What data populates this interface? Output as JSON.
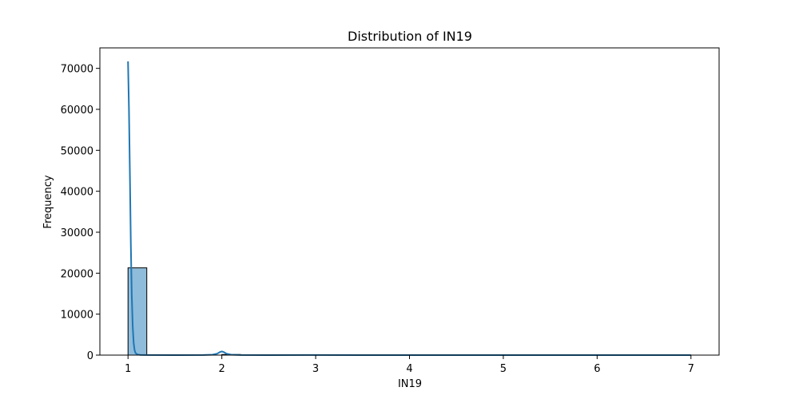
{
  "chart_data": {
    "type": "bar",
    "title": "Distribution of IN19",
    "xlabel": "IN19",
    "ylabel": "Frequency",
    "xlim": [
      0.7,
      7.3
    ],
    "ylim": [
      0,
      75000
    ],
    "xticks": [
      1,
      2,
      3,
      4,
      5,
      6,
      7
    ],
    "yticks": [
      0,
      10000,
      20000,
      30000,
      40000,
      50000,
      60000,
      70000
    ],
    "grid": false,
    "bins": [
      {
        "x0": 1.0,
        "x1": 1.2,
        "count": 21300
      },
      {
        "x0": 1.2,
        "x1": 1.4,
        "count": 0
      },
      {
        "x0": 1.4,
        "x1": 1.6,
        "count": 0
      },
      {
        "x0": 1.6,
        "x1": 1.8,
        "count": 0
      },
      {
        "x0": 1.8,
        "x1": 2.0,
        "count": 0
      },
      {
        "x0": 2.0,
        "x1": 2.2,
        "count": 150
      },
      {
        "x0": 2.2,
        "x1": 2.4,
        "count": 0
      },
      {
        "x0": 2.4,
        "x1": 2.6,
        "count": 0
      },
      {
        "x0": 2.6,
        "x1": 2.8,
        "count": 0
      },
      {
        "x0": 2.8,
        "x1": 3.0,
        "count": 0
      },
      {
        "x0": 3.0,
        "x1": 3.2,
        "count": 30
      },
      {
        "x0": 3.2,
        "x1": 3.4,
        "count": 0
      },
      {
        "x0": 3.4,
        "x1": 3.6,
        "count": 0
      },
      {
        "x0": 3.6,
        "x1": 3.8,
        "count": 0
      },
      {
        "x0": 3.8,
        "x1": 4.0,
        "count": 0
      },
      {
        "x0": 4.0,
        "x1": 4.2,
        "count": 10
      },
      {
        "x0": 4.2,
        "x1": 4.4,
        "count": 0
      },
      {
        "x0": 4.4,
        "x1": 4.6,
        "count": 0
      },
      {
        "x0": 4.6,
        "x1": 4.8,
        "count": 0
      },
      {
        "x0": 4.8,
        "x1": 5.0,
        "count": 0
      },
      {
        "x0": 5.0,
        "x1": 5.2,
        "count": 5
      },
      {
        "x0": 5.2,
        "x1": 5.4,
        "count": 0
      },
      {
        "x0": 5.4,
        "x1": 5.6,
        "count": 0
      },
      {
        "x0": 5.6,
        "x1": 5.8,
        "count": 0
      },
      {
        "x0": 5.8,
        "x1": 6.0,
        "count": 0
      },
      {
        "x0": 6.0,
        "x1": 6.2,
        "count": 3
      },
      {
        "x0": 6.2,
        "x1": 6.4,
        "count": 0
      },
      {
        "x0": 6.4,
        "x1": 6.6,
        "count": 0
      },
      {
        "x0": 6.6,
        "x1": 6.8,
        "count": 0
      },
      {
        "x0": 6.8,
        "x1": 7.0,
        "count": 2
      }
    ],
    "kde": {
      "x": [
        1.0,
        1.01,
        1.02,
        1.03,
        1.04,
        1.05,
        1.06,
        1.07,
        1.08,
        1.1,
        1.13,
        1.2,
        1.5,
        1.8,
        1.9,
        1.95,
        1.98,
        2.0,
        2.02,
        2.05,
        2.1,
        2.2,
        2.5,
        3.0,
        3.5,
        4.0,
        4.5,
        5.0,
        5.5,
        6.0,
        6.5,
        7.0
      ],
      "y": [
        71700,
        60000,
        44000,
        27000,
        14500,
        7000,
        3000,
        1200,
        500,
        150,
        50,
        20,
        5,
        20,
        100,
        350,
        750,
        900,
        750,
        350,
        100,
        15,
        5,
        20,
        5,
        10,
        5,
        5,
        5,
        5,
        5,
        5
      ]
    },
    "colors": {
      "bar_fill": "#8fbcdb",
      "bar_edge": "#000000",
      "kde_line": "#1f77b4",
      "axis": "#000000"
    }
  }
}
